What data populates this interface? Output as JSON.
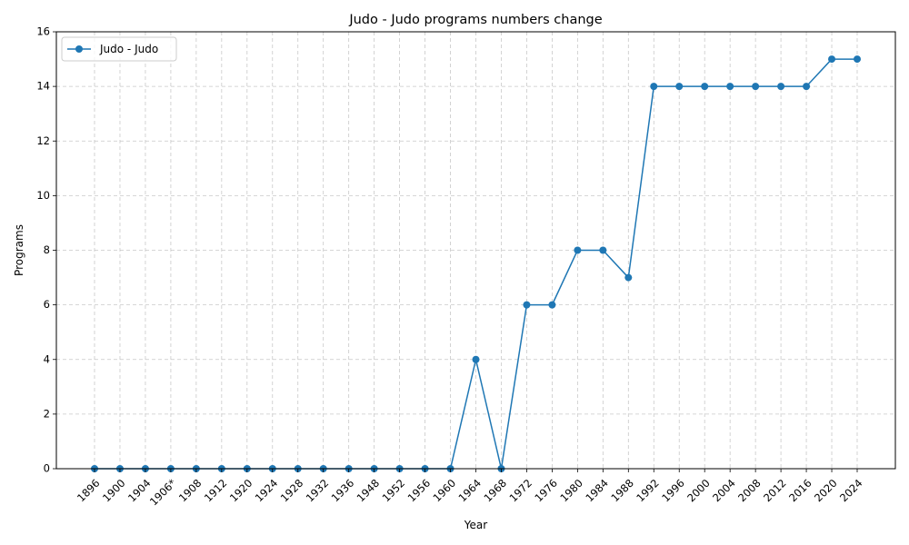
{
  "chart_data": {
    "type": "line",
    "title": "Judo - Judo programs numbers change",
    "xlabel": "Year",
    "ylabel": "Programs",
    "categories": [
      "1896",
      "1900",
      "1904",
      "1906*",
      "1908",
      "1912",
      "1920",
      "1924",
      "1928",
      "1932",
      "1936",
      "1948",
      "1952",
      "1956",
      "1960",
      "1964",
      "1968",
      "1972",
      "1976",
      "1980",
      "1984",
      "1988",
      "1992",
      "1996",
      "2000",
      "2004",
      "2008",
      "2012",
      "2016",
      "2020",
      "2024"
    ],
    "series": [
      {
        "name": "Judo - Judo",
        "values": [
          0,
          0,
          0,
          0,
          0,
          0,
          0,
          0,
          0,
          0,
          0,
          0,
          0,
          0,
          0,
          4,
          0,
          6,
          6,
          8,
          8,
          7,
          14,
          14,
          14,
          14,
          14,
          14,
          14,
          15,
          15
        ],
        "color": "#1f77b4",
        "marker": "circle"
      }
    ],
    "ylim": [
      0,
      16
    ],
    "yticks": [
      0,
      2,
      4,
      6,
      8,
      10,
      12,
      14,
      16
    ],
    "grid": true,
    "grid_style": "dashed",
    "legend_position": "top-left",
    "xtick_rotation": 45
  }
}
